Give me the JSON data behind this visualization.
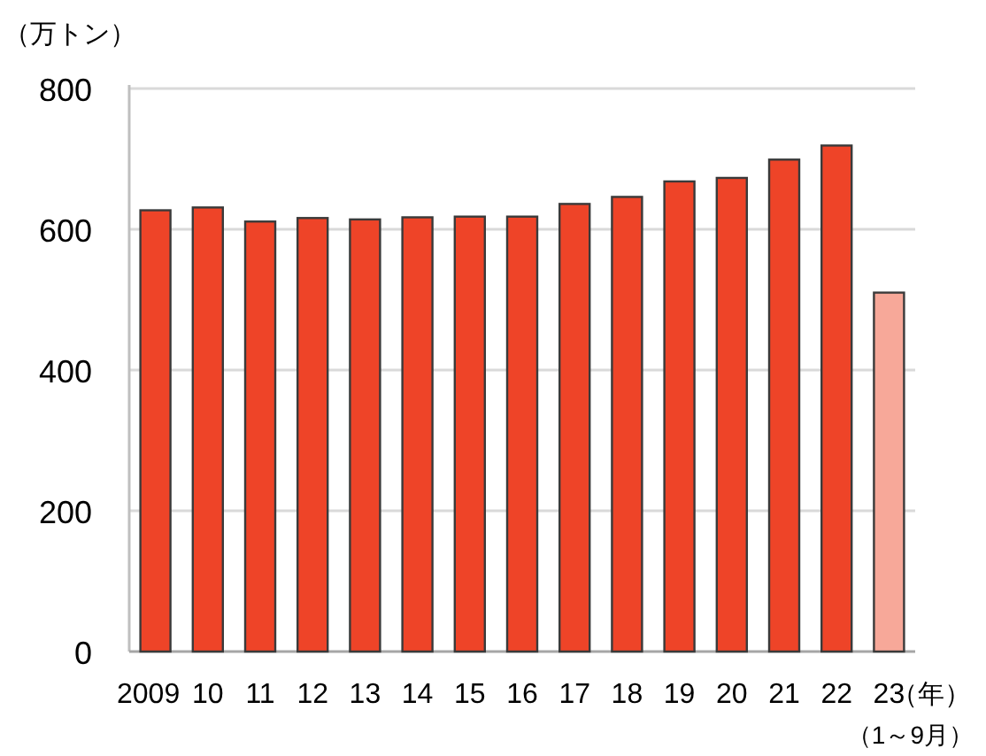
{
  "chart_data": {
    "type": "bar",
    "ylabel": "（万トン）",
    "xlabel": "（年）",
    "categories": [
      "2009",
      "10",
      "11",
      "12",
      "13",
      "14",
      "15",
      "16",
      "17",
      "18",
      "19",
      "20",
      "21",
      "22",
      "23"
    ],
    "values": [
      627,
      631,
      611,
      616,
      614,
      617,
      618,
      618,
      636,
      646,
      668,
      673,
      699,
      719,
      510
    ],
    "colors": [
      "#ee4428",
      "#ee4428",
      "#ee4428",
      "#ee4428",
      "#ee4428",
      "#ee4428",
      "#ee4428",
      "#ee4428",
      "#ee4428",
      "#ee4428",
      "#ee4428",
      "#ee4428",
      "#ee4428",
      "#ee4428",
      "#f7a899"
    ],
    "ylim": [
      0,
      800
    ],
    "yticks": [
      0,
      200,
      400,
      600,
      800
    ],
    "grid": "y",
    "annotations": [
      "（1～9月）"
    ]
  }
}
